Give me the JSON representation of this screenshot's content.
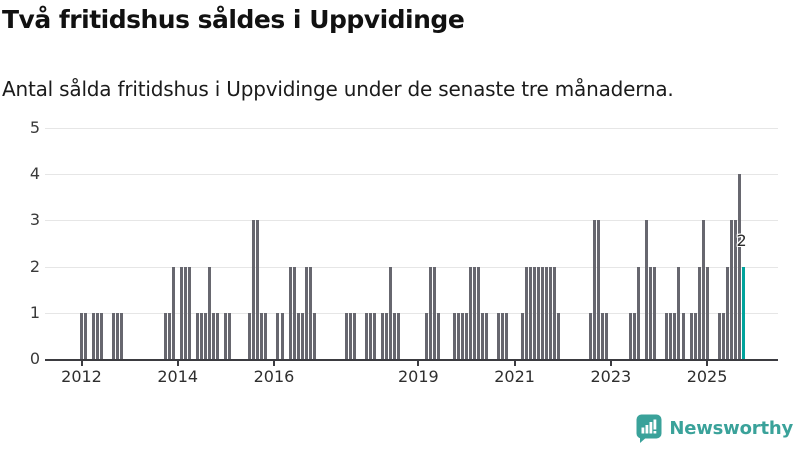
{
  "header": {
    "title": "Två fritidshus såldes i Uppvidinge",
    "subtitle": "Antal sålda fritidshus i Uppvidinge under de senaste tre månaderna."
  },
  "chart_data": {
    "type": "bar",
    "title": "Två fritidshus såldes i Uppvidinge",
    "xlabel": "",
    "ylabel": "",
    "ylim": [
      0,
      5
    ],
    "y_ticks": [
      0,
      1,
      2,
      3,
      4,
      5
    ],
    "grid": "horizontal",
    "legend": "none",
    "frequency": "monthly",
    "start_month": "2012-01",
    "end_month": "2025-10",
    "x_tick_labels": [
      "2012",
      "2014",
      "2016",
      "2019",
      "2021",
      "2023",
      "2025"
    ],
    "bar_color": "#67676f",
    "highlight_color": "#00a39c",
    "highlight_annotation": "2",
    "values": [
      1,
      1,
      0,
      1,
      1,
      1,
      0,
      0,
      1,
      1,
      1,
      0,
      0,
      0,
      0,
      0,
      0,
      0,
      0,
      0,
      0,
      1,
      1,
      2,
      0,
      2,
      2,
      2,
      0,
      1,
      1,
      1,
      2,
      1,
      1,
      0,
      1,
      1,
      0,
      0,
      0,
      0,
      1,
      3,
      3,
      1,
      1,
      0,
      0,
      1,
      1,
      0,
      2,
      2,
      1,
      1,
      2,
      2,
      1,
      0,
      0,
      0,
      0,
      0,
      0,
      0,
      1,
      1,
      1,
      0,
      0,
      1,
      1,
      1,
      0,
      1,
      1,
      2,
      1,
      1,
      0,
      0,
      0,
      0,
      0,
      0,
      1,
      2,
      2,
      1,
      0,
      0,
      0,
      1,
      1,
      1,
      1,
      2,
      2,
      2,
      1,
      1,
      0,
      0,
      1,
      1,
      1,
      0,
      0,
      0,
      1,
      2,
      2,
      2,
      2,
      2,
      2,
      2,
      2,
      1,
      0,
      0,
      0,
      0,
      0,
      0,
      0,
      1,
      3,
      3,
      1,
      1,
      0,
      0,
      0,
      0,
      0,
      1,
      1,
      2,
      0,
      3,
      2,
      2,
      0,
      0,
      1,
      1,
      1,
      2,
      1,
      0,
      1,
      1,
      2,
      3,
      2,
      0,
      0,
      1,
      1,
      2,
      3,
      3,
      4,
      2
    ]
  },
  "footer": {
    "brand": "Newsworthy",
    "brand_color": "#3aa29a",
    "logo_icon": "bar-chart-speech-bubble"
  }
}
